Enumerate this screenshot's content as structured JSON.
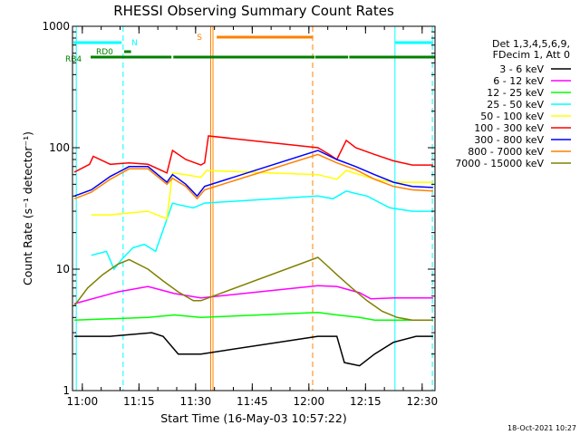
{
  "chart_data": {
    "type": "line",
    "title": "RHESSI Observing Summary Count Rates",
    "xlabel": "Start Time (16-May-03 10:57:22)",
    "ylabel": "Count Rate (s⁻¹ detector⁻¹)",
    "x_axis_start": "10:57:22",
    "xlim": [
      0,
      96
    ],
    "x_ticks": [
      {
        "t": 2.6,
        "label": "11:00"
      },
      {
        "t": 17.6,
        "label": "11:15"
      },
      {
        "t": 32.6,
        "label": "11:30"
      },
      {
        "t": 47.6,
        "label": "11:45"
      },
      {
        "t": 62.6,
        "label": "12:00"
      },
      {
        "t": 77.6,
        "label": "12:15"
      },
      {
        "t": 92.6,
        "label": "12:30"
      }
    ],
    "y_scale": "log",
    "ylim": [
      1,
      1000
    ],
    "y_ticks": [
      {
        "v": 1,
        "label": "1"
      },
      {
        "v": 10,
        "label": "10"
      },
      {
        "v": 100,
        "label": "100"
      },
      {
        "v": 1000,
        "label": "1000"
      }
    ],
    "legend_header": [
      "Det 1,3,4,5,6,9,",
      "FDecim 1, Att 0"
    ],
    "legend_position": "right",
    "series": [
      {
        "name": "3 - 6 keV",
        "color": "#000000",
        "x": [
          0.5,
          10,
          21,
          24,
          28,
          34,
          65,
          70,
          72,
          76,
          80,
          85,
          91,
          95.5
        ],
        "y": [
          2.8,
          2.8,
          3.0,
          2.8,
          2.0,
          2.0,
          2.8,
          2.8,
          1.7,
          1.6,
          2.0,
          2.5,
          2.8,
          2.8
        ]
      },
      {
        "name": "6 - 12 keV",
        "color": "#ff00ff",
        "x": [
          0.5,
          12,
          20,
          27,
          34,
          65,
          70,
          76,
          79,
          85,
          95.5
        ],
        "y": [
          5.2,
          6.5,
          7.2,
          6.3,
          5.8,
          7.3,
          7.2,
          6.4,
          5.7,
          5.8,
          5.8
        ]
      },
      {
        "name": "12 - 25 keV",
        "color": "#00ff00",
        "x": [
          0.5,
          10,
          20,
          27,
          34,
          65,
          70,
          76,
          80,
          85,
          95.5
        ],
        "y": [
          3.8,
          3.9,
          4.0,
          4.2,
          4.0,
          4.4,
          4.2,
          4.0,
          3.8,
          3.8,
          3.8
        ]
      },
      {
        "name": "25 - 50 keV",
        "color": "#00ffff",
        "x": [
          5,
          9,
          11,
          13,
          16,
          19,
          22,
          26.5,
          28,
          32,
          35,
          65,
          69,
          72.5,
          75,
          78,
          84,
          90,
          95.5
        ],
        "y": [
          13,
          14,
          10,
          12,
          15,
          16,
          14,
          35,
          34,
          32,
          35,
          40,
          38,
          44,
          42,
          40,
          32,
          30,
          30
        ]
      },
      {
        "name": "50 - 100 keV",
        "color": "#ffff00",
        "x": [
          5,
          10,
          15,
          20,
          25,
          26.5,
          30,
          34,
          35.5,
          65,
          70,
          72.5,
          76,
          80,
          85,
          90,
          95.5
        ],
        "y": [
          28,
          28,
          29,
          30,
          26,
          62,
          60,
          57,
          65,
          60,
          55,
          65,
          60,
          55,
          52,
          52,
          52
        ]
      },
      {
        "name": "100 - 300 keV",
        "color": "#ff0000",
        "x": [
          0.5,
          4.5,
          5.5,
          10,
          15,
          20,
          25,
          26.5,
          30,
          34,
          35,
          36,
          65,
          68,
          70,
          72.5,
          75,
          80,
          85,
          90,
          95.5
        ],
        "y": [
          63,
          73,
          85,
          73,
          75,
          73,
          62,
          95,
          80,
          72,
          75,
          125,
          100,
          88,
          80,
          115,
          100,
          88,
          78,
          72,
          72
        ]
      },
      {
        "name": "300 - 800 keV",
        "color": "#0000ff",
        "x": [
          0.5,
          5,
          10,
          15,
          20,
          25,
          26.5,
          30,
          33,
          35,
          65,
          70,
          75,
          80,
          85,
          90,
          95.5
        ],
        "y": [
          40,
          45,
          58,
          70,
          70,
          52,
          60,
          50,
          40,
          48,
          95,
          80,
          70,
          60,
          52,
          48,
          47
        ]
      },
      {
        "name": "800 - 7000 keV",
        "color": "#ff8000",
        "x": [
          0.5,
          5,
          10,
          15,
          20,
          25,
          26.5,
          30,
          33,
          35,
          65,
          70,
          75,
          80,
          85,
          90,
          95.5
        ],
        "y": [
          38,
          43,
          55,
          67,
          67,
          50,
          56,
          48,
          38,
          45,
          88,
          75,
          66,
          55,
          48,
          45,
          44
        ]
      },
      {
        "name": "7000 - 15000 keV",
        "color": "#808000",
        "x": [
          0.5,
          4,
          8,
          12,
          15,
          20,
          24,
          28,
          32,
          34,
          65,
          67,
          70,
          74,
          78,
          82,
          86,
          90,
          95.5
        ],
        "y": [
          5,
          7,
          9,
          11,
          12,
          10,
          8,
          6.5,
          5.5,
          5.5,
          12.5,
          11,
          9,
          7,
          5.5,
          4.5,
          4,
          3.8,
          3.8
        ]
      }
    ],
    "flag_bars": [
      {
        "label": "N",
        "color": "#00ffff",
        "segments": [
          [
            0.3,
            13
          ]
        ]
      },
      {
        "label": "N",
        "color": "#00ffff",
        "segments": [
          [
            85.5,
            95.5
          ]
        ]
      },
      {
        "label": "RD0",
        "color": "#008000",
        "segments": [
          [
            13.7,
            15.5
          ]
        ]
      },
      {
        "label": "RB4",
        "color": "#008000",
        "segments": [
          [
            4.8,
            26.2
          ],
          [
            26.7,
            64.1
          ],
          [
            64.3,
            73.0
          ],
          [
            73.3,
            96
          ]
        ]
      },
      {
        "label": "S",
        "color": "#ff8000",
        "segments": [
          [
            38.2,
            63.6
          ]
        ]
      }
    ],
    "vertical_lines": [
      {
        "t": 1.0,
        "color": "#00ffff",
        "style": "solid"
      },
      {
        "t": 13.4,
        "color": "#00ffff",
        "style": "dashed"
      },
      {
        "t": 36.6,
        "color": "#ff8000",
        "style": "solid"
      },
      {
        "t": 37.2,
        "color": "#ff8000",
        "style": "solid"
      },
      {
        "t": 63.6,
        "color": "#ff8000",
        "style": "dashed"
      },
      {
        "t": 85.4,
        "color": "#00ffff",
        "style": "solid"
      },
      {
        "t": 95.3,
        "color": "#00ffff",
        "style": "dashed"
      }
    ]
  },
  "footer": {
    "timestamp": "18-Oct-2021 10:27"
  }
}
